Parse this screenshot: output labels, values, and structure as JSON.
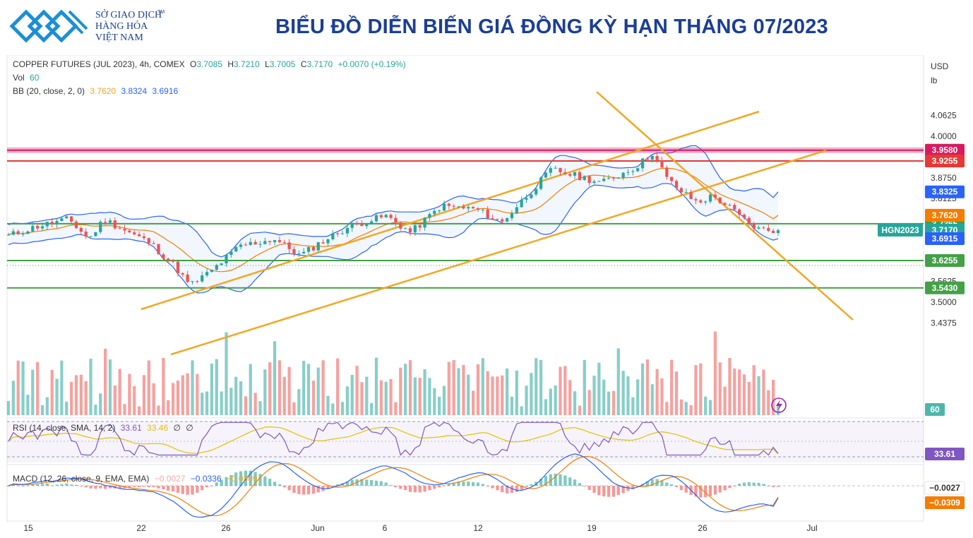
{
  "header": {
    "logo_lines": [
      "SỞ GIAO DỊCH",
      "HÀNG HÓA",
      "VIỆT NAM"
    ],
    "logo_tm": "TM",
    "title": "BIỂU ĐỒ DIỄN BIẾN GIÁ ĐỒNG KỲ HẠN THÁNG 07/2023",
    "brand_color": "#1c3f94",
    "logo_color": "#1a8fd6"
  },
  "legend": {
    "symbol": "COPPER FUTURES (JUL 2023), 4h, COMEX",
    "o_label": "O",
    "o_value": "3.7085",
    "h_label": "H",
    "h_value": "3.7210",
    "l_label": "L",
    "l_value": "3.7005",
    "c_label": "C",
    "c_value": "3.7170",
    "change": "+0.0070 (+0.19%)",
    "vol_label": "Vol",
    "vol_value": "60",
    "bb_label": "BB (20, close, 2, 0)",
    "bb_mid": "3.7620",
    "bb_upper": "3.8324",
    "bb_lower": "3.6916",
    "rsi_label": "RSI (14, close, SMA, 14, 2)",
    "rsi_value": "33.61",
    "rsi_sma": "33.46",
    "rsi_x1": "∅",
    "rsi_x2": "∅",
    "macd_label": "MACD (12, 26, close, 9, EMA, EMA)",
    "macd_hist": "−0.0027",
    "macd_line": "−0.0336",
    "macd_signal": "−0.0309"
  },
  "units": [
    "USD",
    "lb"
  ],
  "chart_data": {
    "type": "candlestick",
    "title": "BIỂU ĐỒ DIỄN BIẾN GIÁ ĐỒNG KỲ HẠN THÁNG 07/2023",
    "instrument": "COPPER FUTURES (JUL 2023), 4h, COMEX",
    "x_tick_labels": [
      "15",
      "22",
      "26",
      "Jun",
      "6",
      "12",
      "19",
      "26",
      "Jul"
    ],
    "y_tick_labels": [
      "4.0625",
      "4.0000",
      "3.8750",
      "3.8125",
      "3.5625",
      "3.5000",
      "3.4375"
    ],
    "ylim": [
      3.41,
      4.12
    ],
    "price_path": [
      [
        0,
        3.7
      ],
      [
        6,
        3.73
      ],
      [
        12,
        3.75
      ],
      [
        16,
        3.69
      ],
      [
        19,
        3.75
      ],
      [
        24,
        3.71
      ],
      [
        28,
        3.68
      ],
      [
        33,
        3.61
      ],
      [
        36,
        3.55
      ],
      [
        40,
        3.59
      ],
      [
        46,
        3.67
      ],
      [
        53,
        3.69
      ],
      [
        58,
        3.64
      ],
      [
        62,
        3.68
      ],
      [
        68,
        3.73
      ],
      [
        75,
        3.76
      ],
      [
        80,
        3.71
      ],
      [
        86,
        3.79
      ],
      [
        93,
        3.78
      ],
      [
        98,
        3.74
      ],
      [
        108,
        3.9
      ],
      [
        113,
        3.88
      ],
      [
        118,
        3.86
      ],
      [
        125,
        3.91
      ],
      [
        128,
        3.95
      ],
      [
        131,
        3.87
      ],
      [
        134,
        3.83
      ],
      [
        137,
        3.8
      ],
      [
        140,
        3.82
      ],
      [
        143,
        3.79
      ],
      [
        146,
        3.75
      ],
      [
        149,
        3.72
      ],
      [
        153,
        3.717
      ]
    ],
    "last_candle": {
      "o": 3.7085,
      "h": 3.721,
      "l": 3.7005,
      "c": 3.717
    },
    "levels": [
      {
        "value": 3.958,
        "label": "3.9580",
        "color": "#d81b60"
      },
      {
        "value": 3.9255,
        "label": "3.9255",
        "color": "#e53935"
      },
      {
        "value": 3.7365,
        "label": "3.7365",
        "color": "#43a047"
      },
      {
        "value": 3.6255,
        "label": "3.6255",
        "color": "#43a047"
      },
      {
        "value": 3.543,
        "label": "3.5430",
        "color": "#43a047"
      }
    ],
    "bb_latest": {
      "upper": 3.8325,
      "mid": 3.762,
      "lower": 3.6915
    },
    "price_tag": {
      "symbol": "HGN2023",
      "value": "3.7170"
    },
    "volume_last": "60",
    "rsi": {
      "value": 33.61,
      "sma": 33.46,
      "axis_tag": "33.61"
    },
    "macd": {
      "histogram": -0.0027,
      "macd": -0.0336,
      "signal": -0.0309,
      "axis_tags": [
        "−0.0027",
        "−0.0309"
      ]
    },
    "colors": {
      "up": "#26a69a",
      "down": "#ef5350",
      "bb": "#2962ff",
      "bb_mid": "#f57c00",
      "trend": "#f5a623",
      "rsi": "#7e57c2",
      "rsi_sma": "#e3c200"
    }
  }
}
